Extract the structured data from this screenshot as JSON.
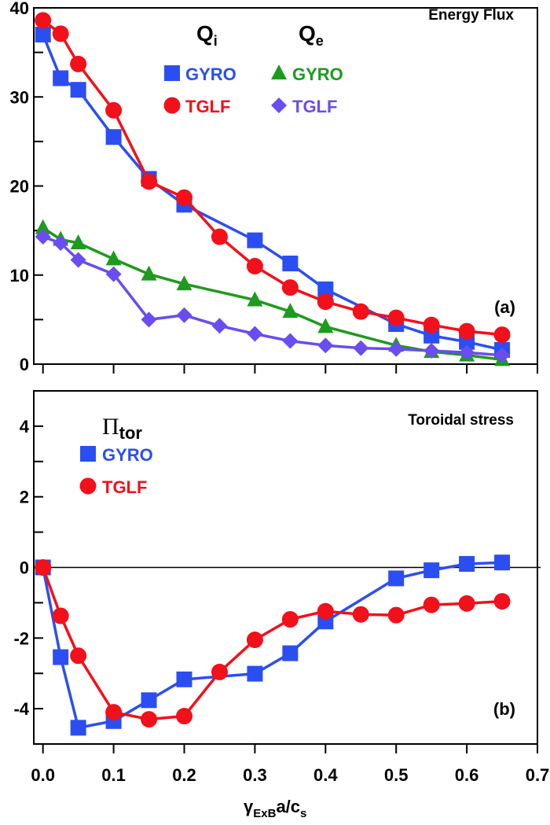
{
  "colors": {
    "gyro_qi": "#2b4ef2",
    "tglf_qi": "#f2101a",
    "gyro_qe": "#1e9a1e",
    "tglf_qe": "#6a4cf0",
    "axis": "#000000"
  },
  "chart_data": [
    {
      "type": "line",
      "panel_label": "(a)",
      "title": "Energy Flux",
      "xlim": [
        -0.013,
        0.7
      ],
      "ylim": [
        0,
        40
      ],
      "yticks": [
        0,
        10,
        20,
        30,
        40
      ],
      "legend": {
        "group_labels": [
          "Q",
          "Q"
        ],
        "group_subscripts": [
          "i",
          "e"
        ],
        "placement": "top-center"
      },
      "series": [
        {
          "name": "GYRO",
          "group": "Qi",
          "marker": "square",
          "color_key": "gyro_qi",
          "x": [
            0,
            0.025,
            0.05,
            0.1,
            0.15,
            0.2,
            0.3,
            0.35,
            0.4,
            0.5,
            0.55,
            0.6,
            0.65
          ],
          "y": [
            37.0,
            32.1,
            30.8,
            25.5,
            20.8,
            17.9,
            13.9,
            11.3,
            8.4,
            4.5,
            3.2,
            2.5,
            1.6
          ]
        },
        {
          "name": "TGLF",
          "group": "Qi",
          "marker": "circle",
          "color_key": "tglf_qi",
          "x": [
            0,
            0.025,
            0.05,
            0.1,
            0.15,
            0.2,
            0.25,
            0.3,
            0.35,
            0.4,
            0.45,
            0.5,
            0.55,
            0.6,
            0.65
          ],
          "y": [
            38.6,
            37.1,
            33.7,
            28.5,
            20.5,
            18.7,
            14.3,
            11.0,
            8.6,
            7.0,
            5.9,
            5.2,
            4.4,
            3.7,
            3.3
          ]
        },
        {
          "name": "GYRO",
          "group": "Qe",
          "marker": "triangle",
          "color_key": "gyro_qe",
          "x": [
            0,
            0.025,
            0.05,
            0.1,
            0.15,
            0.2,
            0.3,
            0.35,
            0.4,
            0.5,
            0.55,
            0.6,
            0.65
          ],
          "y": [
            15.3,
            14.0,
            13.6,
            11.8,
            10.1,
            9.0,
            7.2,
            5.9,
            4.2,
            2.1,
            1.4,
            1.0,
            0.5
          ]
        },
        {
          "name": "TGLF",
          "group": "Qe",
          "marker": "diamond",
          "color_key": "tglf_qe",
          "x": [
            0,
            0.025,
            0.05,
            0.1,
            0.15,
            0.2,
            0.25,
            0.3,
            0.35,
            0.4,
            0.45,
            0.5,
            0.55,
            0.6,
            0.65
          ],
          "y": [
            14.3,
            13.6,
            11.7,
            10.1,
            5.0,
            5.5,
            4.3,
            3.4,
            2.6,
            2.1,
            1.8,
            1.7,
            1.5,
            1.3,
            1.0
          ]
        }
      ]
    },
    {
      "type": "line",
      "panel_label": "(b)",
      "title": "Toroidal stress",
      "xlabel": "γ",
      "xlabel_sub": "ExB",
      "xlabel_rest": "a/c",
      "xlabel_sub2": "s",
      "xlim": [
        -0.013,
        0.7
      ],
      "ylim": [
        -5,
        5
      ],
      "yticks": [
        -4,
        -2,
        0,
        2,
        4
      ],
      "xticks": [
        "0.0",
        "0.1",
        "0.2",
        "0.3",
        "0.4",
        "0.5",
        "0.6",
        "0.7"
      ],
      "legend": {
        "group_label": "Π",
        "group_subscript": "tor",
        "placement": "top-left"
      },
      "zero_line": true,
      "series": [
        {
          "name": "GYRO",
          "marker": "square",
          "color_key": "gyro_qi",
          "x": [
            0,
            0.025,
            0.05,
            0.1,
            0.15,
            0.2,
            0.3,
            0.35,
            0.4,
            0.5,
            0.55,
            0.6,
            0.65
          ],
          "y": [
            0,
            -2.54,
            -4.54,
            -4.35,
            -3.76,
            -3.17,
            -3.01,
            -2.43,
            -1.53,
            -0.31,
            -0.08,
            0.1,
            0.14
          ]
        },
        {
          "name": "TGLF",
          "marker": "circle",
          "color_key": "tglf_qi",
          "x": [
            0,
            0.025,
            0.05,
            0.1,
            0.15,
            0.2,
            0.25,
            0.3,
            0.35,
            0.4,
            0.45,
            0.5,
            0.55,
            0.6,
            0.65
          ],
          "y": [
            0,
            -1.37,
            -2.5,
            -4.1,
            -4.3,
            -4.21,
            -2.96,
            -2.05,
            -1.47,
            -1.24,
            -1.33,
            -1.35,
            -1.06,
            -1.02,
            -0.96
          ]
        }
      ]
    }
  ]
}
